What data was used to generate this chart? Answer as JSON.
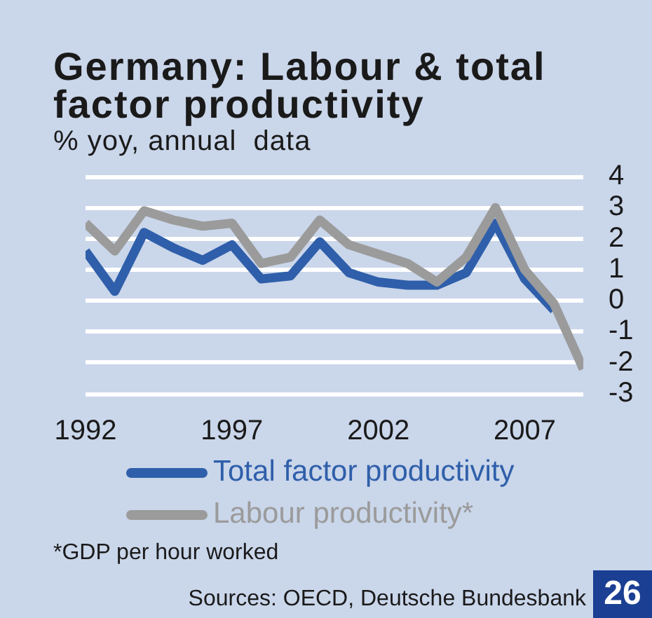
{
  "chart_data": {
    "type": "line",
    "title": "Germany: Labour & total factor productivity",
    "subtitle": "% yoy, annual  data",
    "x": [
      1992,
      1993,
      1994,
      1995,
      1996,
      1997,
      1998,
      1999,
      2000,
      2001,
      2002,
      2003,
      2004,
      2005,
      2006,
      2007,
      2008,
      2009
    ],
    "series": [
      {
        "name": "Total factor productivity",
        "color": "#2f5faa",
        "values": [
          1.6,
          0.3,
          2.2,
          1.7,
          1.3,
          1.8,
          0.7,
          0.8,
          1.9,
          0.9,
          0.6,
          0.5,
          0.5,
          0.9,
          2.5,
          0.7,
          -0.3,
          null
        ]
      },
      {
        "name": "Labour productivity*",
        "color": "#9b9b9b",
        "values": [
          2.5,
          1.6,
          2.9,
          2.6,
          2.4,
          2.5,
          1.2,
          1.4,
          2.6,
          1.8,
          1.5,
          1.2,
          0.6,
          1.4,
          3.0,
          1.0,
          -0.1,
          -2.2
        ]
      }
    ],
    "xlim": [
      1992,
      2009
    ],
    "xticks": [
      1992,
      1997,
      2002,
      2007
    ],
    "ylim": [
      -3,
      4
    ],
    "yticks": [
      -3,
      -2,
      -1,
      0,
      1,
      2,
      3,
      4
    ],
    "grid": "y",
    "legend": "bottom",
    "marker": "none",
    "annotations": [
      "*GDP per hour worked",
      "Sources: OECD, Deutsche Bundesbank",
      "26"
    ]
  }
}
